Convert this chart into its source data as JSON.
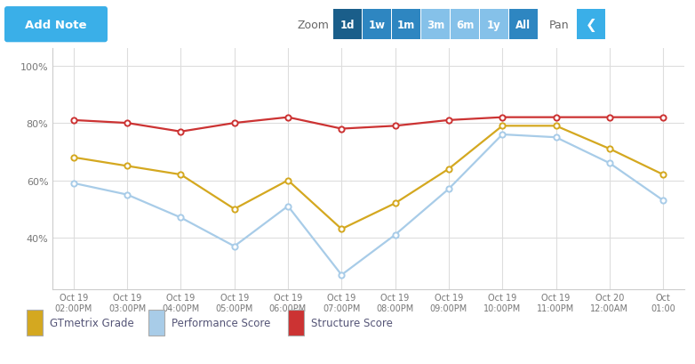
{
  "x_labels": [
    "Oct 19\n02:00PM",
    "Oct 19\n03:00PM",
    "Oct 19\n04:00PM",
    "Oct 19\n05:00PM",
    "Oct 19\n06:00PM",
    "Oct 19\n07:00PM",
    "Oct 19\n08:00PM",
    "Oct 19\n09:00PM",
    "Oct 19\n10:00PM",
    "Oct 19\n11:00PM",
    "Oct 20\n12:00AM",
    "Oct\n01:00"
  ],
  "gtmetrix_grade": [
    68,
    65,
    62,
    50,
    60,
    43,
    52,
    64,
    79,
    79,
    71,
    62
  ],
  "performance_score": [
    59,
    55,
    47,
    37,
    51,
    27,
    41,
    57,
    76,
    75,
    66,
    53
  ],
  "structure_score": [
    81,
    80,
    77,
    80,
    82,
    78,
    79,
    81,
    82,
    82,
    82,
    82
  ],
  "gtmetrix_color": "#D4A820",
  "performance_color": "#A8CCE8",
  "structure_color": "#CC3333",
  "bg_color": "#ffffff",
  "grid_color": "#dddddd",
  "plot_bg": "#ffffff",
  "y_ticks": [
    40,
    60,
    80,
    100
  ],
  "y_labels": [
    "40%",
    "60%",
    "80%",
    "100%"
  ],
  "ylim": [
    22,
    106
  ],
  "zoom_labels": [
    "1d",
    "1w",
    "1m",
    "3m",
    "6m",
    "1y",
    "All"
  ],
  "zoom_colors": [
    "#1A5E8A",
    "#2E86C1",
    "#2E86C1",
    "#85C1E9",
    "#85C1E9",
    "#85C1E9",
    "#2E86C1"
  ],
  "add_note_color": "#3AAFE8",
  "pan_arrow_color": "#3AAFE8",
  "legend_labels": [
    "GTmetrix Grade",
    "Performance Score",
    "Structure Score"
  ],
  "legend_colors": [
    "#D4A820",
    "#A8CCE8",
    "#CC3333"
  ],
  "toolbar_bg": "#f5f5f5",
  "chart_border": "#cccccc"
}
